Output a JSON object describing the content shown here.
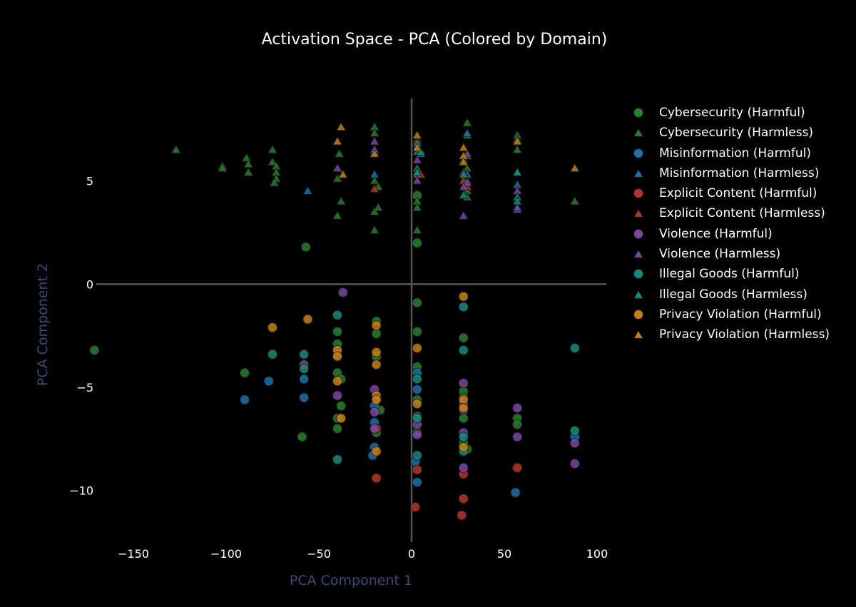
{
  "chart_data": {
    "type": "scatter",
    "title": "Activation Space - PCA (Colored by Domain)",
    "xlabel": "PCA Component 1",
    "ylabel": "PCA Component 2",
    "xlim": [
      -170,
      105
    ],
    "ylim": [
      -12.5,
      9
    ],
    "xticks": [
      -150,
      -100,
      -50,
      0,
      50,
      100
    ],
    "xtick_labels": [
      "−150",
      "−100",
      "−50",
      "0",
      "50",
      "100"
    ],
    "yticks": [
      5,
      0,
      -5,
      -10
    ],
    "ytick_labels": [
      "5",
      "0",
      "−5",
      "−10"
    ],
    "grid": false,
    "zero_lines": true,
    "legend_position": "right",
    "series": [
      {
        "name": "Cybersecurity (Harmful)",
        "color": "#2a7d2e",
        "marker": "circle",
        "points": [
          [
            -171,
            -3.2
          ],
          [
            -57,
            1.8
          ],
          [
            -90,
            -4.3
          ],
          [
            -59,
            -7.4
          ],
          [
            -40,
            -2.3
          ],
          [
            -40,
            -2.9
          ],
          [
            -40,
            -3.4
          ],
          [
            -40,
            -4.3
          ],
          [
            -40,
            -6.5
          ],
          [
            -40,
            -7.0
          ],
          [
            -38,
            -4.6
          ],
          [
            -38,
            -5.9
          ],
          [
            -19,
            -1.8
          ],
          [
            -19,
            -2.4
          ],
          [
            -19,
            -3.5
          ],
          [
            -19,
            -5.6
          ],
          [
            -19,
            -7.2
          ],
          [
            -17,
            -6.1
          ],
          [
            3,
            4.3
          ],
          [
            3,
            2.0
          ],
          [
            3,
            -0.9
          ],
          [
            3,
            -2.3
          ],
          [
            3,
            -4.0
          ],
          [
            3,
            -5.6
          ],
          [
            3,
            -6.4
          ],
          [
            3,
            -7.2
          ],
          [
            28,
            -2.6
          ],
          [
            28,
            -5.2
          ],
          [
            28,
            -5.5
          ],
          [
            28,
            -6.5
          ],
          [
            28,
            -7.7
          ],
          [
            30,
            -8.0
          ],
          [
            57,
            -6.5
          ],
          [
            57,
            -6.8
          ]
        ]
      },
      {
        "name": "Cybersecurity (Harmless)",
        "color": "#2a7d2e",
        "marker": "triangle",
        "points": [
          [
            -127,
            6.5
          ],
          [
            -102,
            5.7
          ],
          [
            -102,
            5.6
          ],
          [
            -89,
            6.1
          ],
          [
            -88,
            5.8
          ],
          [
            -88,
            5.4
          ],
          [
            -75,
            6.5
          ],
          [
            -75,
            5.9
          ],
          [
            -73,
            5.7
          ],
          [
            -73,
            5.4
          ],
          [
            -73,
            5.1
          ],
          [
            -74,
            4.9
          ],
          [
            -40,
            5.1
          ],
          [
            -39,
            6.3
          ],
          [
            -38,
            4.0
          ],
          [
            -40,
            3.3
          ],
          [
            -20,
            7.6
          ],
          [
            -20,
            7.3
          ],
          [
            -20,
            5.0
          ],
          [
            -18,
            4.7
          ],
          [
            -20,
            3.5
          ],
          [
            -18,
            3.7
          ],
          [
            -20,
            2.6
          ],
          [
            3,
            7.0
          ],
          [
            3,
            6.4
          ],
          [
            3,
            5.6
          ],
          [
            3,
            5.3
          ],
          [
            3,
            4.0
          ],
          [
            3,
            3.7
          ],
          [
            3,
            2.6
          ],
          [
            30,
            7.8
          ],
          [
            30,
            7.2
          ],
          [
            30,
            6.2
          ],
          [
            30,
            5.6
          ],
          [
            30,
            5.0
          ],
          [
            30,
            4.5
          ],
          [
            30,
            4.2
          ],
          [
            57,
            7.2
          ],
          [
            57,
            7.0
          ],
          [
            57,
            6.5
          ],
          [
            88,
            4.0
          ]
        ]
      },
      {
        "name": "Misinformation (Harmful)",
        "color": "#1f6fa8",
        "marker": "circle",
        "points": [
          [
            -90,
            -5.6
          ],
          [
            -77,
            -4.7
          ],
          [
            -58,
            -4.6
          ],
          [
            -58,
            -5.5
          ],
          [
            -20,
            -6.7
          ],
          [
            -20,
            -7.9
          ],
          [
            -20,
            -5.9
          ],
          [
            -21,
            -8.3
          ],
          [
            2,
            -8.6
          ],
          [
            3,
            -4.3
          ],
          [
            3,
            -5.1
          ],
          [
            3,
            -9.6
          ],
          [
            56,
            -10.1
          ],
          [
            88,
            -7.4
          ]
        ]
      },
      {
        "name": "Misinformation (Harmless)",
        "color": "#1f6fa8",
        "marker": "triangle",
        "points": [
          [
            -56,
            4.5
          ],
          [
            -20,
            5.3
          ],
          [
            -20,
            6.4
          ],
          [
            3,
            6.6
          ],
          [
            3,
            5.4
          ],
          [
            5,
            6.3
          ],
          [
            30,
            7.3
          ],
          [
            30,
            5.3
          ],
          [
            57,
            4.8
          ],
          [
            57,
            5.4
          ],
          [
            57,
            3.6
          ]
        ]
      },
      {
        "name": "Explicit Content (Harmful)",
        "color": "#b5342a",
        "marker": "circle",
        "points": [
          [
            -19,
            -9.4
          ],
          [
            -19,
            -7.0
          ],
          [
            2,
            -10.8
          ],
          [
            3,
            -9.0
          ],
          [
            27,
            -11.2
          ],
          [
            28,
            -10.4
          ],
          [
            28,
            -9.2
          ],
          [
            57,
            -8.9
          ]
        ]
      },
      {
        "name": "Explicit Content (Harmless)",
        "color": "#b5342a",
        "marker": "triangle",
        "points": [
          [
            -20,
            4.6
          ],
          [
            3,
            6.9
          ],
          [
            5,
            5.3
          ],
          [
            28,
            5.0
          ],
          [
            30,
            4.7
          ]
        ]
      },
      {
        "name": "Violence (Harmful)",
        "color": "#7a46a0",
        "marker": "circle",
        "points": [
          [
            -37,
            -0.4
          ],
          [
            -58,
            -3.9
          ],
          [
            -40,
            -5.4
          ],
          [
            -20,
            -5.1
          ],
          [
            -20,
            -6.2
          ],
          [
            -20,
            -7.0
          ],
          [
            3,
            -6.8
          ],
          [
            3,
            -7.3
          ],
          [
            28,
            -4.8
          ],
          [
            28,
            -5.8
          ],
          [
            28,
            -6.1
          ],
          [
            28,
            -7.2
          ],
          [
            28,
            -8.9
          ],
          [
            57,
            -6.0
          ],
          [
            57,
            -7.4
          ],
          [
            88,
            -7.7
          ],
          [
            88,
            -8.7
          ]
        ]
      },
      {
        "name": "Violence (Harmless)",
        "color": "#7a46a0",
        "marker": "triangle",
        "points": [
          [
            -40,
            5.6
          ],
          [
            -20,
            6.9
          ],
          [
            -20,
            6.5
          ],
          [
            3,
            6.0
          ],
          [
            3,
            5.0
          ],
          [
            28,
            5.4
          ],
          [
            30,
            6.3
          ],
          [
            30,
            4.9
          ],
          [
            28,
            4.7
          ],
          [
            28,
            3.3
          ],
          [
            57,
            4.5
          ],
          [
            57,
            3.7
          ]
        ]
      },
      {
        "name": "Illegal Goods (Harmful)",
        "color": "#17897a",
        "marker": "circle",
        "points": [
          [
            -75,
            -3.4
          ],
          [
            -58,
            -3.4
          ],
          [
            -58,
            -4.1
          ],
          [
            -40,
            -1.5
          ],
          [
            -40,
            -8.5
          ],
          [
            3,
            -4.6
          ],
          [
            3,
            -6.5
          ],
          [
            3,
            -8.3
          ],
          [
            28,
            -1.1
          ],
          [
            28,
            -3.2
          ],
          [
            28,
            -7.4
          ],
          [
            28,
            -8.1
          ],
          [
            88,
            -3.1
          ],
          [
            88,
            -7.1
          ]
        ]
      },
      {
        "name": "Illegal Goods (Harmless)",
        "color": "#17897a",
        "marker": "triangle",
        "points": [
          [
            3,
            5.4
          ],
          [
            5,
            6.4
          ],
          [
            28,
            5.3
          ],
          [
            28,
            4.3
          ],
          [
            57,
            5.4
          ],
          [
            57,
            4.2
          ],
          [
            57,
            4.0
          ],
          [
            3,
            6.8
          ],
          [
            28,
            6.0
          ]
        ]
      },
      {
        "name": "Privacy Violation (Harmful)",
        "color": "#c47f17",
        "marker": "circle",
        "points": [
          [
            -75,
            -2.1
          ],
          [
            -56,
            -1.7
          ],
          [
            -40,
            -3.2
          ],
          [
            -40,
            -3.5
          ],
          [
            -40,
            -4.7
          ],
          [
            -38,
            -6.5
          ],
          [
            -19,
            -2.0
          ],
          [
            -19,
            -3.3
          ],
          [
            -19,
            -3.9
          ],
          [
            -19,
            -5.4
          ],
          [
            -19,
            -5.6
          ],
          [
            -19,
            -8.1
          ],
          [
            3,
            -3.1
          ],
          [
            3,
            -5.8
          ],
          [
            28,
            -0.6
          ],
          [
            28,
            -5.6
          ],
          [
            28,
            -6.0
          ],
          [
            28,
            -7.9
          ]
        ]
      },
      {
        "name": "Privacy Violation (Harmless)",
        "color": "#c47f17",
        "marker": "triangle",
        "points": [
          [
            -38,
            7.6
          ],
          [
            -40,
            6.9
          ],
          [
            -37,
            5.3
          ],
          [
            -20,
            6.3
          ],
          [
            3,
            7.2
          ],
          [
            3,
            6.6
          ],
          [
            28,
            6.6
          ],
          [
            28,
            6.2
          ],
          [
            28,
            5.9
          ],
          [
            57,
            6.9
          ],
          [
            88,
            5.6
          ]
        ]
      }
    ]
  }
}
